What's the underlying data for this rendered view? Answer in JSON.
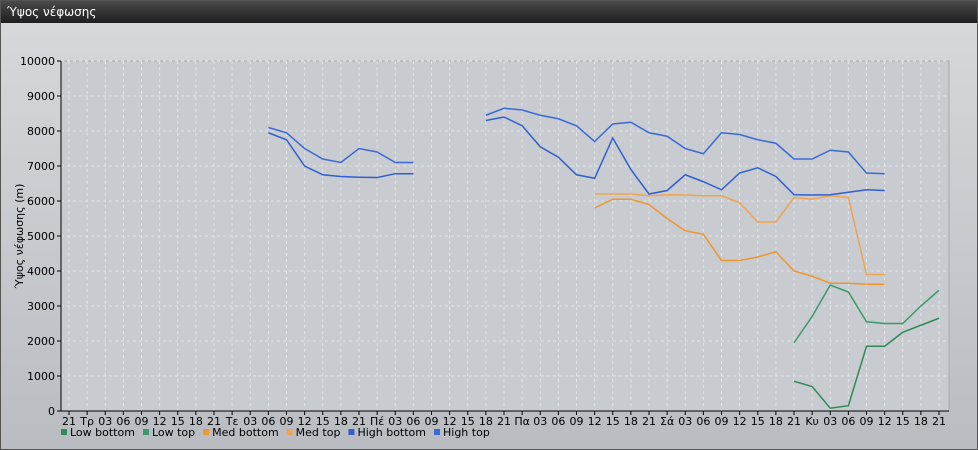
{
  "chart_data": {
    "type": "line",
    "title": "Ύψος νέφωσης",
    "y_label": "Ύψος νέφωσης (m)",
    "categories": [
      "21",
      "Τρ",
      "03",
      "06",
      "09",
      "12",
      "15",
      "18",
      "21",
      "Τε",
      "03",
      "06",
      "09",
      "12",
      "15",
      "18",
      "21",
      "Πέ",
      "03",
      "06",
      "09",
      "12",
      "15",
      "18",
      "21",
      "Πα",
      "03",
      "06",
      "09",
      "12",
      "15",
      "18",
      "21",
      "Σά",
      "03",
      "06",
      "09",
      "12",
      "15",
      "18",
      "21",
      "Κυ",
      "03",
      "06",
      "09",
      "12",
      "15",
      "18",
      "21"
    ],
    "ylim": [
      0,
      10000
    ],
    "yticks": [
      0,
      1000,
      2000,
      3000,
      4000,
      5000,
      6000,
      7000,
      8000,
      9000,
      10000
    ],
    "grid": true,
    "legend": "bottom",
    "series": [
      {
        "name": "Low bottom",
        "color": "#2e8b5a",
        "values": [
          null,
          null,
          null,
          null,
          null,
          null,
          null,
          null,
          null,
          null,
          null,
          null,
          null,
          null,
          null,
          null,
          null,
          null,
          null,
          null,
          null,
          null,
          null,
          null,
          null,
          null,
          null,
          null,
          null,
          null,
          null,
          null,
          null,
          null,
          null,
          null,
          null,
          null,
          null,
          null,
          850,
          700,
          80,
          150,
          1850,
          1850,
          2250,
          2450,
          2650
        ]
      },
      {
        "name": "Low top",
        "color": "#3a9a6a",
        "values": [
          null,
          null,
          null,
          null,
          null,
          null,
          null,
          null,
          null,
          null,
          null,
          null,
          null,
          null,
          null,
          null,
          null,
          null,
          null,
          null,
          null,
          null,
          null,
          null,
          null,
          null,
          null,
          null,
          null,
          null,
          null,
          null,
          null,
          null,
          null,
          null,
          null,
          null,
          null,
          null,
          1950,
          2700,
          3600,
          3400,
          2550,
          2500,
          2500,
          3000,
          3450
        ]
      },
      {
        "name": "Med bottom",
        "color": "#f0962e",
        "values": [
          null,
          null,
          null,
          null,
          null,
          null,
          null,
          null,
          null,
          null,
          null,
          null,
          null,
          null,
          null,
          null,
          null,
          null,
          null,
          null,
          null,
          null,
          null,
          null,
          null,
          null,
          null,
          null,
          null,
          5800,
          6050,
          6050,
          5900,
          5500,
          5150,
          5050,
          4300,
          4300,
          4400,
          4550,
          4000,
          3850,
          3650,
          3650,
          3620,
          3620,
          null,
          null,
          null
        ]
      },
      {
        "name": "Med top",
        "color": "#f0a450",
        "values": [
          null,
          null,
          null,
          null,
          null,
          null,
          null,
          null,
          null,
          null,
          null,
          null,
          null,
          null,
          null,
          null,
          null,
          null,
          null,
          null,
          null,
          null,
          null,
          null,
          null,
          null,
          null,
          null,
          null,
          6200,
          6200,
          6200,
          6150,
          6180,
          6170,
          6150,
          6150,
          5950,
          5400,
          5400,
          6100,
          6050,
          6150,
          6100,
          3900,
          3900,
          null,
          null,
          null
        ]
      },
      {
        "name": "High bottom",
        "color": "#2f5fd0",
        "values": [
          null,
          null,
          null,
          null,
          null,
          null,
          null,
          null,
          null,
          null,
          null,
          7950,
          7750,
          7000,
          6750,
          6700,
          6680,
          6670,
          6780,
          6780,
          null,
          null,
          null,
          8300,
          8400,
          8150,
          7550,
          7250,
          6750,
          6650,
          7800,
          6900,
          6200,
          6300,
          6750,
          6550,
          6320,
          6800,
          6950,
          6700,
          6180,
          6170,
          6180,
          6250,
          6320,
          6300,
          null,
          null,
          null
        ]
      },
      {
        "name": "High top",
        "color": "#3a6ad8",
        "values": [
          null,
          null,
          null,
          null,
          null,
          null,
          null,
          null,
          null,
          null,
          null,
          8100,
          7950,
          7500,
          7200,
          7100,
          7500,
          7400,
          7100,
          7100,
          null,
          null,
          null,
          8450,
          8650,
          8600,
          8450,
          8350,
          8150,
          7700,
          8200,
          8250,
          7950,
          7850,
          7500,
          7350,
          7950,
          7900,
          7750,
          7650,
          7200,
          7200,
          7450,
          7400,
          6800,
          6780,
          null,
          null,
          null
        ]
      }
    ]
  }
}
